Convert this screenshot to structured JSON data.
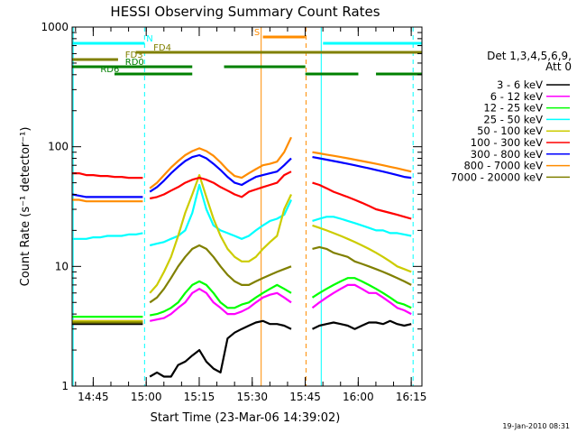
{
  "chart_data": {
    "type": "line",
    "title": "HESSI Observing Summary Count Rates",
    "xlabel": "Start Time (23-Mar-06 14:39:02)",
    "ylabel": "Count Rate (s⁻¹ detector⁻¹)",
    "yscale": "log",
    "ylim": [
      1,
      1000
    ],
    "xlim_minutes_after_start": [
      0,
      99
    ],
    "x_ticks": [
      "14:45",
      "15:00",
      "15:15",
      "15:30",
      "15:45",
      "16:00",
      "16:15"
    ],
    "x_ticks_minutes_after_start": [
      5.97,
      20.97,
      35.97,
      50.97,
      65.97,
      80.97,
      95.97
    ],
    "y_ticks": [
      "1",
      "10",
      "100",
      "1000"
    ],
    "y_tick_values": [
      1,
      10,
      100,
      1000
    ],
    "legend": {
      "placement": "right",
      "header": [
        "Det 1,3,4,5,6,9,",
        "Att 0"
      ],
      "entries": [
        {
          "label": "3 - 6 keV",
          "color": "#000000"
        },
        {
          "label": "6 - 12 keV",
          "color": "#ff00ff"
        },
        {
          "label": "12 - 25 keV",
          "color": "#00ff00"
        },
        {
          "label": "25 - 50 keV",
          "color": "#00ffff"
        },
        {
          "label": "50 - 100 keV",
          "color": "#cccc00"
        },
        {
          "label": "100 - 300 keV",
          "color": "#ff0000"
        },
        {
          "label": "300 - 800 keV",
          "color": "#0000ff"
        },
        {
          "label": "800 - 7000 keV",
          "color": "#ff8c00"
        },
        {
          "label": "7000 - 20000 keV",
          "color": "#808000"
        }
      ]
    },
    "x": [
      0,
      2,
      4,
      6,
      8,
      10,
      12,
      14,
      16,
      18,
      20,
      21,
      22,
      24,
      26,
      28,
      30,
      32,
      34,
      36,
      38,
      40,
      42,
      44,
      46,
      48,
      50,
      52,
      54,
      56,
      58,
      60,
      62,
      66,
      68,
      70,
      72,
      74,
      76,
      78,
      80,
      82,
      84,
      86,
      88,
      90,
      92,
      94,
      96
    ],
    "series": [
      {
        "name": "3 - 6 keV",
        "color": "#000000",
        "values": [
          3.3,
          3.3,
          3.3,
          3.3,
          3.3,
          3.3,
          3.3,
          3.3,
          3.3,
          3.3,
          3.3,
          null,
          1.2,
          1.3,
          1.2,
          1.2,
          1.5,
          1.6,
          1.8,
          2.0,
          1.6,
          1.4,
          1.3,
          2.5,
          2.8,
          3.0,
          3.2,
          3.4,
          3.5,
          3.3,
          3.3,
          3.2,
          3.0,
          null,
          3.0,
          3.2,
          3.3,
          3.4,
          3.3,
          3.2,
          3.0,
          3.2,
          3.4,
          3.4,
          3.3,
          3.5,
          3.3,
          3.2,
          3.3
        ]
      },
      {
        "name": "6 - 12 keV",
        "color": "#ff00ff",
        "values": [
          3.5,
          3.5,
          3.5,
          3.5,
          3.5,
          3.5,
          3.5,
          3.5,
          3.5,
          3.5,
          3.5,
          null,
          3.5,
          3.6,
          3.7,
          4.0,
          4.5,
          5.0,
          6.0,
          6.5,
          6.0,
          5.0,
          4.5,
          4.0,
          4.0,
          4.2,
          4.5,
          5.0,
          5.5,
          5.8,
          6.0,
          5.5,
          5.0,
          null,
          4.5,
          5.0,
          5.5,
          6.0,
          6.5,
          7.0,
          7.0,
          6.5,
          6.0,
          6.0,
          5.5,
          5.0,
          4.5,
          4.3,
          4.0
        ]
      },
      {
        "name": "12 - 25 keV",
        "color": "#00ff00",
        "values": [
          3.8,
          3.8,
          3.8,
          3.8,
          3.8,
          3.8,
          3.8,
          3.8,
          3.8,
          3.8,
          3.8,
          null,
          3.9,
          4.0,
          4.2,
          4.5,
          5.0,
          6.0,
          7.0,
          7.5,
          7.0,
          6.0,
          5.0,
          4.5,
          4.5,
          4.8,
          5.0,
          5.5,
          6.0,
          6.5,
          7.0,
          6.5,
          6.0,
          null,
          5.5,
          6.0,
          6.5,
          7.0,
          7.5,
          8.0,
          8.0,
          7.5,
          7.0,
          6.5,
          6.0,
          5.5,
          5.0,
          4.8,
          4.5
        ]
      },
      {
        "name": "25 - 50 keV",
        "color": "#00ffff",
        "values": [
          17,
          17,
          17,
          17.5,
          17.5,
          18,
          18,
          18,
          18.5,
          18.5,
          19,
          null,
          15,
          15.5,
          16,
          17,
          18,
          20,
          28,
          48,
          30,
          22,
          20,
          19,
          18,
          17,
          18,
          20,
          22,
          24,
          25,
          27,
          36,
          null,
          24,
          25,
          26,
          26,
          25,
          24,
          23,
          22,
          21,
          20,
          20,
          19,
          19,
          18.5,
          18
        ]
      },
      {
        "name": "50 - 100 keV",
        "color": "#cccc00",
        "values": [
          3.5,
          3.5,
          3.5,
          3.5,
          3.5,
          3.5,
          3.5,
          3.5,
          3.5,
          3.5,
          3.5,
          null,
          6.0,
          7.0,
          9.0,
          12,
          18,
          28,
          40,
          58,
          38,
          25,
          18,
          14,
          12,
          11,
          11,
          12,
          14,
          16,
          18,
          30,
          40,
          null,
          22,
          21,
          20,
          19,
          18,
          17,
          16,
          15,
          14,
          13,
          12,
          11,
          10,
          9.5,
          9.0
        ]
      },
      {
        "name": "100 - 300 keV",
        "color": "#ff0000",
        "values": [
          60,
          60,
          58,
          58,
          57,
          57,
          56,
          56,
          55,
          55,
          55,
          null,
          37,
          38,
          40,
          43,
          46,
          50,
          53,
          55,
          53,
          50,
          46,
          43,
          40,
          38,
          42,
          44,
          46,
          48,
          50,
          58,
          62,
          null,
          50,
          48,
          45,
          42,
          40,
          38,
          36,
          34,
          32,
          30,
          29,
          28,
          27,
          26,
          25
        ]
      },
      {
        "name": "300 - 800 keV",
        "color": "#0000ff",
        "values": [
          40,
          39,
          38,
          38,
          38,
          38,
          38,
          38,
          38,
          38,
          38,
          null,
          42,
          46,
          52,
          60,
          68,
          76,
          82,
          85,
          80,
          72,
          64,
          56,
          50,
          48,
          52,
          56,
          58,
          60,
          62,
          70,
          80,
          null,
          82,
          80,
          78,
          76,
          74,
          72,
          70,
          68,
          66,
          64,
          62,
          60,
          58,
          56,
          55
        ]
      },
      {
        "name": "800 - 7000 keV",
        "color": "#ff8c00",
        "values": [
          36,
          36,
          35,
          35,
          35,
          35,
          35,
          35,
          35,
          35,
          35,
          null,
          45,
          50,
          58,
          67,
          76,
          85,
          92,
          97,
          92,
          84,
          74,
          64,
          57,
          55,
          60,
          65,
          70,
          72,
          75,
          90,
          120,
          null,
          90,
          88,
          86,
          84,
          82,
          80,
          78,
          76,
          74,
          72,
          70,
          68,
          66,
          64,
          62
        ]
      },
      {
        "name": "7000 - 20000 keV",
        "color": "#808000",
        "values": [
          3.4,
          3.4,
          3.4,
          3.4,
          3.4,
          3.4,
          3.4,
          3.4,
          3.4,
          3.4,
          3.4,
          null,
          5.0,
          5.5,
          6.5,
          8.0,
          10,
          12,
          14,
          15,
          14,
          12,
          10,
          8.5,
          7.5,
          7.0,
          7.0,
          7.5,
          8.0,
          8.5,
          9.0,
          9.5,
          10,
          null,
          14,
          14.5,
          14,
          13,
          12.5,
          12,
          11,
          10.5,
          10,
          9.5,
          9.0,
          8.5,
          8.0,
          7.5,
          7.0
        ]
      }
    ],
    "flag_bars": [
      {
        "label": "N",
        "color": "#00ffff"
      },
      {
        "label": "FD3",
        "color": "#808000"
      },
      {
        "label": "FD4",
        "color": "#808000"
      },
      {
        "label": "RD0",
        "color": "#008000"
      },
      {
        "label": "RD6",
        "color": "#008000"
      },
      {
        "label": "S",
        "color": "#ff8c00"
      }
    ]
  },
  "footer": {
    "timestamp": "19-Jan-2010 08:31"
  }
}
